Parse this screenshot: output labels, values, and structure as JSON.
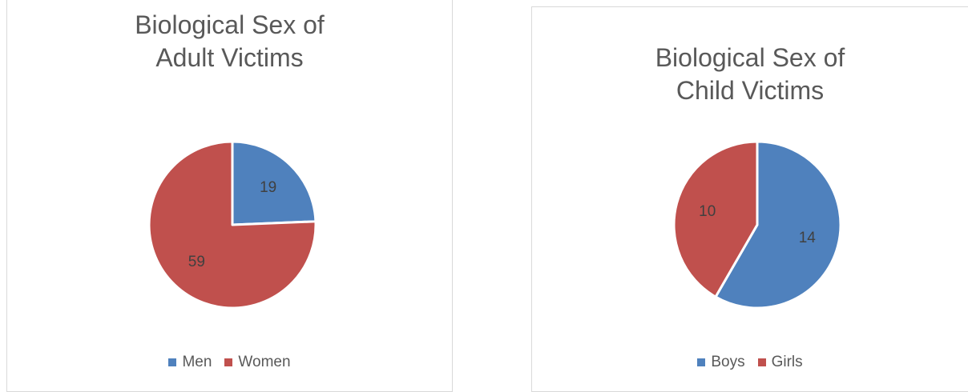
{
  "chart_data": [
    {
      "type": "pie",
      "title": [
        "Biological Sex of",
        "Adult Victims"
      ],
      "categories": [
        "Men",
        "Women"
      ],
      "values": [
        19,
        59
      ],
      "colors": [
        "#4f81bd",
        "#c0504d"
      ],
      "data_labels": [
        "19",
        "59"
      ],
      "legend_position": "bottom"
    },
    {
      "type": "pie",
      "title": [
        "Biological Sex of",
        "Child Victims"
      ],
      "categories": [
        "Boys",
        "Girls"
      ],
      "values": [
        14,
        10
      ],
      "colors": [
        "#4f81bd",
        "#c0504d"
      ],
      "data_labels": [
        "14",
        "10"
      ],
      "legend_position": "bottom"
    }
  ]
}
